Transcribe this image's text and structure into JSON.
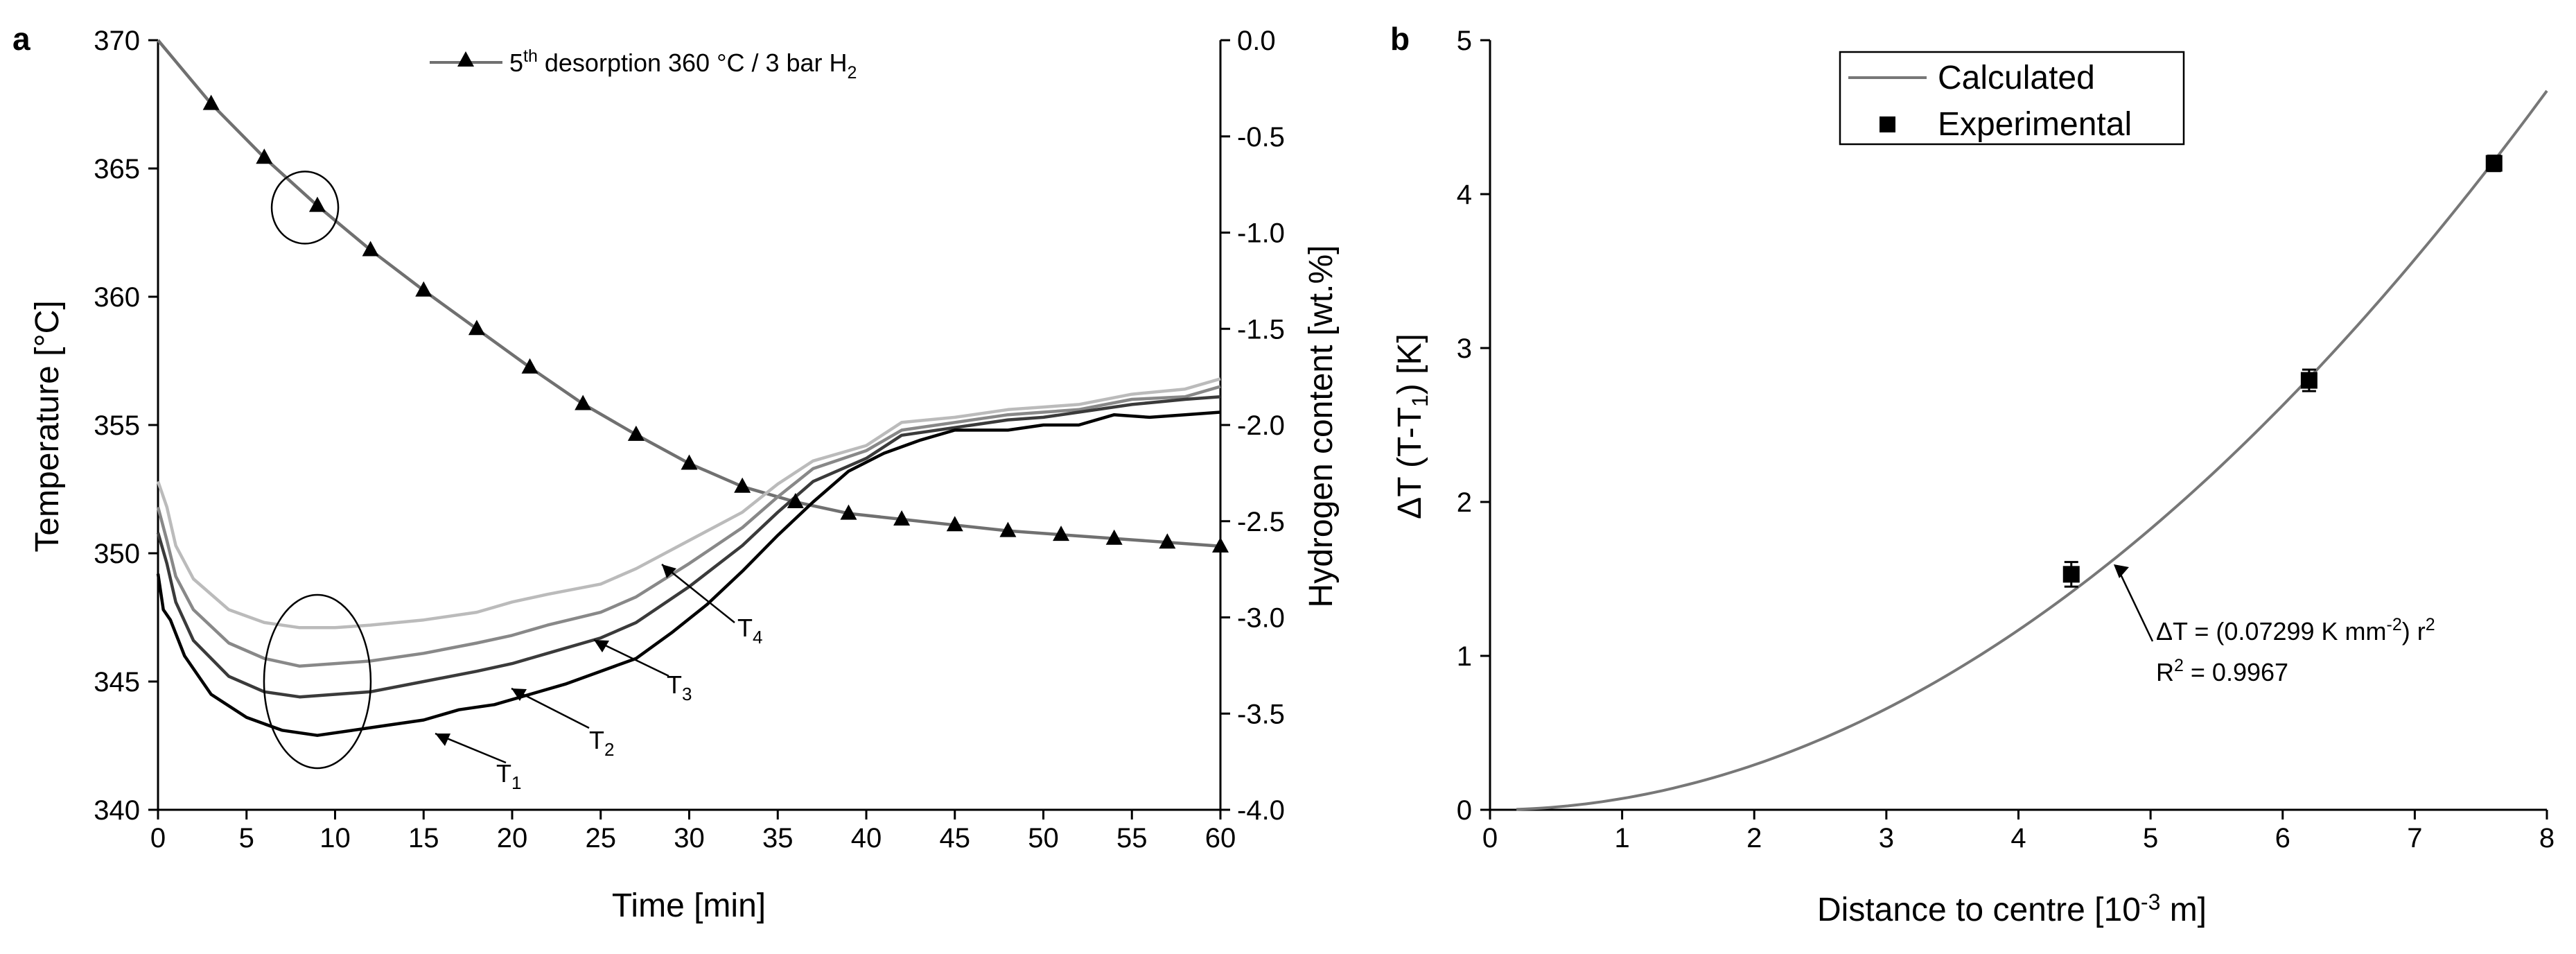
{
  "chart_data": [
    {
      "id": "a",
      "panel_label": "a",
      "type": "line",
      "xlabel": "Time [min]",
      "ylabel": "Temperature [°C]",
      "y2label": "Hydrogen content [wt.%]",
      "xlim": [
        0,
        60
      ],
      "ylim": [
        340,
        370
      ],
      "y2lim": [
        -4.0,
        0.0
      ],
      "x_ticks": [
        "0",
        "5",
        "10",
        "15",
        "20",
        "25",
        "30",
        "35",
        "40",
        "45",
        "50",
        "55",
        "60"
      ],
      "y_ticks": [
        "340",
        "345",
        "350",
        "355",
        "360",
        "365",
        "370"
      ],
      "y2_ticks": [
        "-4.0",
        "-3.5",
        "-3.0",
        "-2.5",
        "-2.0",
        "-1.5",
        "-1.0",
        "-0.5",
        "0.0"
      ],
      "legend": {
        "position": "top-center",
        "label_main": "5",
        "label_sup": "th",
        "label_rest": " desorption 360 °C / 3 bar H",
        "label_sub": "2"
      },
      "series": [
        {
          "name": "Hydrogen content (5th desorption)",
          "axis": "right",
          "color": "#707070",
          "marker": "triangle",
          "x": [
            0,
            3,
            6,
            9,
            12,
            15,
            18,
            21,
            24,
            27,
            30,
            33,
            36,
            39,
            42,
            45,
            48,
            51,
            54,
            57,
            60
          ],
          "y": [
            0.0,
            -0.33,
            -0.61,
            -0.86,
            -1.09,
            -1.3,
            -1.5,
            -1.7,
            -1.89,
            -2.05,
            -2.2,
            -2.32,
            -2.4,
            -2.46,
            -2.49,
            -2.52,
            -2.55,
            -2.57,
            -2.59,
            -2.61,
            -2.63
          ]
        },
        {
          "name": "T4",
          "label": "T",
          "label_sub": "4",
          "axis": "left",
          "color": "#bbbbbb",
          "x": [
            0,
            0.5,
            1,
            2,
            4,
            6,
            8,
            10,
            12,
            15,
            18,
            20,
            22,
            25,
            27,
            30,
            33,
            35,
            37,
            40,
            42,
            45,
            48,
            50,
            52,
            55,
            58,
            60
          ],
          "y": [
            352.8,
            351.8,
            350.3,
            349.0,
            347.8,
            347.3,
            347.1,
            347.1,
            347.2,
            347.4,
            347.7,
            348.1,
            348.4,
            348.8,
            349.4,
            350.5,
            351.6,
            352.7,
            353.6,
            354.2,
            355.1,
            355.3,
            355.6,
            355.7,
            355.8,
            356.2,
            356.4,
            356.8
          ]
        },
        {
          "name": "T3",
          "label": "T",
          "label_sub": "3",
          "axis": "left",
          "color": "#888888",
          "x": [
            0,
            0.5,
            1,
            2,
            4,
            6,
            8,
            10,
            12,
            15,
            18,
            20,
            22,
            25,
            27,
            30,
            33,
            35,
            37,
            40,
            42,
            45,
            48,
            50,
            52,
            55,
            58,
            60
          ],
          "y": [
            351.8,
            350.5,
            349.1,
            347.8,
            346.5,
            345.9,
            345.6,
            345.7,
            345.8,
            346.1,
            346.5,
            346.8,
            347.2,
            347.7,
            348.3,
            349.6,
            351.0,
            352.2,
            353.3,
            354.0,
            354.8,
            355.1,
            355.4,
            355.5,
            355.6,
            356.0,
            356.1,
            356.5
          ]
        },
        {
          "name": "T2",
          "label": "T",
          "label_sub": "2",
          "axis": "left",
          "color": "#3a3a3a",
          "x": [
            0,
            0.5,
            1,
            2,
            4,
            6,
            8,
            10,
            12,
            15,
            18,
            20,
            22,
            25,
            27,
            30,
            33,
            35,
            37,
            40,
            42,
            45,
            48,
            50,
            52,
            55,
            58,
            60
          ],
          "y": [
            350.8,
            349.6,
            348.1,
            346.6,
            345.2,
            344.6,
            344.4,
            344.5,
            344.6,
            345.0,
            345.4,
            345.7,
            346.1,
            346.7,
            347.3,
            348.7,
            350.3,
            351.6,
            352.8,
            353.7,
            354.6,
            354.9,
            355.2,
            355.3,
            355.5,
            355.8,
            356.0,
            356.1
          ]
        },
        {
          "name": "T1",
          "label": "T",
          "label_sub": "1",
          "axis": "left",
          "color": "#000000",
          "x": [
            0,
            0.3,
            0.7,
            1.5,
            3,
            5,
            7,
            9,
            11,
            13,
            15,
            17,
            19,
            21,
            23,
            25,
            27,
            29,
            31,
            33,
            35,
            37,
            39,
            41,
            43,
            45,
            48,
            50,
            52,
            54,
            56,
            58,
            60
          ],
          "y": [
            349.2,
            347.8,
            347.4,
            346.0,
            344.5,
            343.6,
            343.1,
            342.9,
            343.1,
            343.3,
            343.5,
            343.9,
            344.1,
            344.5,
            344.9,
            345.4,
            345.9,
            346.9,
            348.0,
            349.3,
            350.7,
            352.0,
            353.2,
            353.9,
            354.4,
            354.8,
            354.8,
            355.0,
            355.0,
            355.4,
            355.3,
            355.4,
            355.5
          ]
        }
      ],
      "annotations": {
        "circle_hydrogen_center": [
          8.3,
          -0.87
        ],
        "circle_temperature_center": [
          9.0,
          345.0
        ]
      }
    },
    {
      "id": "b",
      "panel_label": "b",
      "type": "scatter",
      "xlabel": "Distance to centre [10",
      "xlabel_sup": "-3",
      "xlabel_end": " m]",
      "ylabel": "ΔT (T-T",
      "ylabel_sub": "1",
      "ylabel_end": ") [K]",
      "xlim": [
        0,
        8
      ],
      "ylim": [
        0,
        5
      ],
      "x_ticks": [
        "0",
        "1",
        "2",
        "3",
        "4",
        "5",
        "6",
        "7",
        "8"
      ],
      "y_ticks": [
        "0",
        "1",
        "2",
        "3",
        "4",
        "5"
      ],
      "legend": {
        "position": "top-left",
        "calculated": "Calculated",
        "experimental": "Experimental"
      },
      "series": [
        {
          "name": "Calculated",
          "type": "line",
          "color": "#777777",
          "formula": "dT = 0.07299 * r^2",
          "coefficient": 0.07299,
          "x_range": [
            0.2,
            8.0
          ]
        },
        {
          "name": "Experimental",
          "type": "scatter",
          "color": "#000000",
          "x": [
            4.4,
            6.2,
            7.6
          ],
          "y": [
            1.53,
            2.79,
            4.2
          ],
          "y_err": [
            0.08,
            0.07,
            0.05
          ]
        }
      ],
      "fit_annotation": {
        "eq_start": "ΔT = (0.07299 K mm",
        "eq_sup1": "-2",
        "eq_mid": ") r",
        "eq_sup2": "2",
        "r2_start": "R",
        "r2_sup": "2",
        "r2_end": " = 0.9967",
        "arrow_target_x": 4.7
      }
    }
  ]
}
